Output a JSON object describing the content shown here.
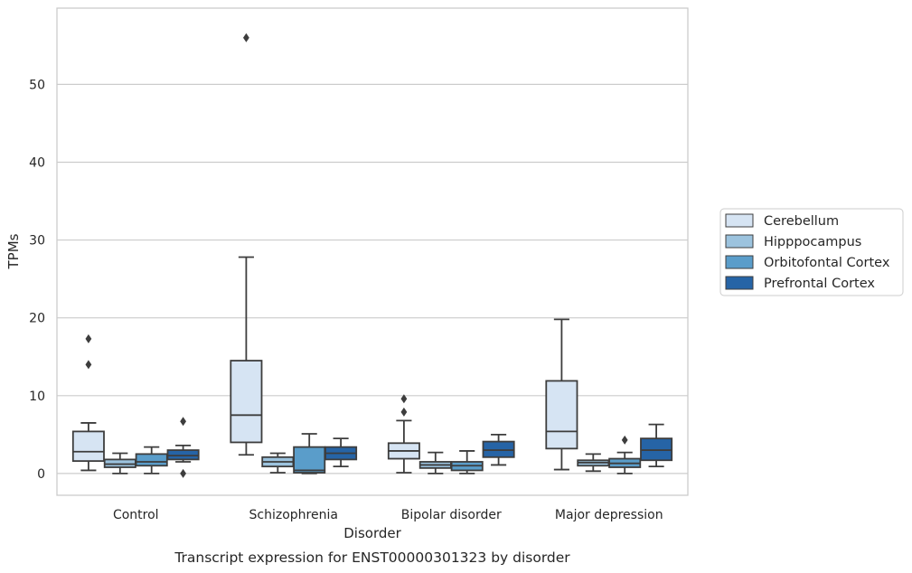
{
  "chart_data": {
    "type": "box",
    "caption": "Transcript expression for ENST00000301323 by disorder",
    "xlabel": "Disorder",
    "ylabel": "TPMs",
    "ylim": [
      -2.8,
      59.8
    ],
    "yticks": [
      0,
      10,
      20,
      30,
      40,
      50
    ],
    "grid": "horizontal",
    "legend_position": "right",
    "categories": [
      "Control",
      "Schizophrenia",
      "Bipolar disorder",
      "Major depression"
    ],
    "series": [
      {
        "name": "Cerebellum",
        "color": "#d6e4f3",
        "boxes": [
          {
            "q1": 1.6,
            "median": 2.8,
            "q3": 5.4,
            "whislo": 0.4,
            "whishi": 6.5,
            "fliers": [
              14.0,
              17.3
            ]
          },
          {
            "q1": 4.0,
            "median": 7.5,
            "q3": 14.5,
            "whislo": 2.4,
            "whishi": 27.8,
            "fliers": [
              56.0
            ]
          },
          {
            "q1": 1.9,
            "median": 2.9,
            "q3": 3.9,
            "whislo": 0.1,
            "whishi": 6.8,
            "fliers": [
              7.9,
              9.6
            ]
          },
          {
            "q1": 3.2,
            "median": 5.4,
            "q3": 11.9,
            "whislo": 0.5,
            "whishi": 19.8,
            "fliers": []
          }
        ]
      },
      {
        "name": "Hipppocampus",
        "color": "#9cc3de",
        "boxes": [
          {
            "q1": 0.8,
            "median": 1.2,
            "q3": 1.8,
            "whislo": 0.0,
            "whishi": 2.6,
            "fliers": []
          },
          {
            "q1": 0.9,
            "median": 1.5,
            "q3": 2.1,
            "whislo": 0.1,
            "whishi": 2.6,
            "fliers": []
          },
          {
            "q1": 0.7,
            "median": 1.1,
            "q3": 1.5,
            "whislo": 0.0,
            "whishi": 2.7,
            "fliers": []
          },
          {
            "q1": 1.0,
            "median": 1.4,
            "q3": 1.7,
            "whislo": 0.3,
            "whishi": 2.5,
            "fliers": []
          }
        ]
      },
      {
        "name": "Orbitofontal Cortex",
        "color": "#5a9dca",
        "boxes": [
          {
            "q1": 1.0,
            "median": 1.5,
            "q3": 2.5,
            "whislo": 0.0,
            "whishi": 3.4,
            "fliers": []
          },
          {
            "q1": 0.1,
            "median": 0.4,
            "q3": 3.4,
            "whislo": 0.0,
            "whishi": 5.1,
            "fliers": []
          },
          {
            "q1": 0.4,
            "median": 1.0,
            "q3": 1.5,
            "whislo": 0.0,
            "whishi": 2.9,
            "fliers": []
          },
          {
            "q1": 0.8,
            "median": 1.3,
            "q3": 1.9,
            "whislo": 0.0,
            "whishi": 2.7,
            "fliers": [
              4.3
            ]
          }
        ]
      },
      {
        "name": "Prefrontal Cortex",
        "color": "#2664a6",
        "boxes": [
          {
            "q1": 1.8,
            "median": 2.3,
            "q3": 3.0,
            "whislo": 1.5,
            "whishi": 3.6,
            "fliers": [
              0.0,
              6.7
            ]
          },
          {
            "q1": 1.8,
            "median": 2.6,
            "q3": 3.4,
            "whislo": 0.9,
            "whishi": 4.5,
            "fliers": []
          },
          {
            "q1": 2.1,
            "median": 3.0,
            "q3": 4.1,
            "whislo": 1.1,
            "whishi": 5.0,
            "fliers": []
          },
          {
            "q1": 1.7,
            "median": 3.0,
            "q3": 4.5,
            "whislo": 0.9,
            "whishi": 6.3,
            "fliers": []
          }
        ]
      }
    ]
  }
}
